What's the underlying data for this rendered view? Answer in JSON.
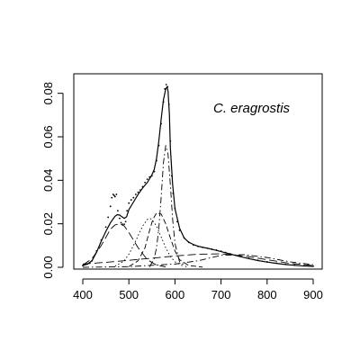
{
  "chart_data": {
    "type": "line",
    "title": "",
    "xlabel": "",
    "ylabel": "",
    "xlim": [
      400,
      900
    ],
    "ylim": [
      0,
      0.084
    ],
    "x_ticks": [
      400,
      500,
      600,
      700,
      800,
      900
    ],
    "x_tick_labels": [
      "400",
      "500",
      "600",
      "700",
      "800",
      "900"
    ],
    "y_ticks": [
      0.0,
      0.02,
      0.04,
      0.06,
      0.08
    ],
    "y_tick_labels": [
      "0.00",
      "0.02",
      "0.04",
      "0.06",
      "0.08"
    ],
    "grid": false,
    "annotation": "C. eragrostis",
    "series": [
      {
        "style": "solid",
        "x": [
          400,
          410,
          420,
          430,
          440,
          450,
          460,
          465,
          470,
          475,
          480,
          485,
          490,
          495,
          500,
          510,
          520,
          530,
          540,
          550,
          555,
          560,
          565,
          570,
          575,
          580,
          583,
          585,
          588,
          590,
          595,
          600,
          610,
          620,
          630,
          640,
          650,
          660,
          670,
          680,
          690,
          700,
          720,
          740,
          760,
          780,
          800,
          820,
          840,
          860,
          880,
          900
        ],
        "y": [
          0.0008,
          0.0015,
          0.003,
          0.007,
          0.012,
          0.0165,
          0.0205,
          0.022,
          0.0235,
          0.0242,
          0.024,
          0.0232,
          0.0225,
          0.0232,
          0.0265,
          0.03,
          0.0335,
          0.0365,
          0.039,
          0.0425,
          0.045,
          0.05,
          0.058,
          0.068,
          0.077,
          0.082,
          0.083,
          0.081,
          0.07,
          0.055,
          0.038,
          0.027,
          0.018,
          0.0135,
          0.0115,
          0.0105,
          0.0097,
          0.0092,
          0.0088,
          0.0083,
          0.0078,
          0.0072,
          0.0061,
          0.005,
          0.004,
          0.0031,
          0.0024,
          0.0018,
          0.0013,
          0.0009,
          0.0006,
          0.0004
        ]
      },
      {
        "style": "points",
        "x": [
          400,
          410,
          420,
          430,
          440,
          450,
          455,
          460,
          463,
          466,
          468,
          470,
          473,
          476,
          480,
          483,
          486,
          490,
          493,
          496,
          500,
          505,
          510,
          515,
          520,
          525,
          530,
          535,
          540,
          545,
          550,
          555,
          560,
          565,
          570,
          575,
          578,
          581,
          584,
          587,
          590,
          593,
          596,
          600,
          605,
          610,
          620,
          630,
          640,
          650,
          660,
          670,
          680,
          690,
          700,
          710,
          720,
          740,
          760,
          780,
          800,
          820,
          840,
          860,
          880,
          900
        ],
        "y": [
          0.0008,
          0.0015,
          0.003,
          0.0075,
          0.0125,
          0.0185,
          0.023,
          0.028,
          0.032,
          0.0335,
          0.033,
          0.0325,
          0.0335,
          0.026,
          0.0225,
          0.0205,
          0.0198,
          0.0198,
          0.021,
          0.026,
          0.0295,
          0.031,
          0.032,
          0.0335,
          0.0345,
          0.0355,
          0.037,
          0.039,
          0.0405,
          0.0415,
          0.042,
          0.044,
          0.049,
          0.056,
          0.066,
          0.076,
          0.082,
          0.084,
          0.083,
          0.075,
          0.058,
          0.042,
          0.034,
          0.027,
          0.021,
          0.017,
          0.0135,
          0.0115,
          0.0103,
          0.0096,
          0.0092,
          0.0088,
          0.0083,
          0.0079,
          0.0074,
          0.0068,
          0.0062,
          0.0051,
          0.0041,
          0.0032,
          0.0025,
          0.0019,
          0.0014,
          0.001,
          0.0007,
          0.0005
        ]
      },
      {
        "style": "long-dash",
        "x": [
          400,
          420,
          440,
          460,
          470,
          480,
          490,
          500,
          510,
          520,
          540,
          560,
          580
        ],
        "y": [
          0.001,
          0.004,
          0.01,
          0.0175,
          0.0195,
          0.02,
          0.019,
          0.016,
          0.0125,
          0.009,
          0.0035,
          0.001,
          0.0002
        ]
      },
      {
        "style": "dotted",
        "x": [
          470,
          490,
          500,
          510,
          520,
          530,
          540,
          545,
          550,
          560,
          570,
          580,
          590,
          600,
          620
        ],
        "y": [
          0.0005,
          0.003,
          0.006,
          0.01,
          0.0145,
          0.019,
          0.022,
          0.0225,
          0.022,
          0.019,
          0.014,
          0.009,
          0.005,
          0.0025,
          0.0003
        ]
      },
      {
        "style": "dash",
        "x": [
          500,
          520,
          535,
          545,
          552,
          560,
          570,
          580,
          590,
          600,
          610,
          630,
          660
        ],
        "y": [
          0.0003,
          0.003,
          0.009,
          0.017,
          0.022,
          0.025,
          0.0245,
          0.02,
          0.0135,
          0.0075,
          0.0035,
          0.0008,
          0.0001
        ]
      },
      {
        "style": "dash-dot",
        "x": [
          545,
          555,
          560,
          565,
          570,
          575,
          580,
          585,
          590,
          595,
          600,
          610,
          625
        ],
        "y": [
          0.0002,
          0.004,
          0.009,
          0.018,
          0.032,
          0.048,
          0.056,
          0.052,
          0.038,
          0.022,
          0.011,
          0.0025,
          0.0002
        ]
      },
      {
        "style": "long-dash",
        "x": [
          400,
          450,
          500,
          550,
          600,
          650,
          700,
          750,
          800,
          850,
          900
        ],
        "y": [
          0.0015,
          0.0023,
          0.0032,
          0.0042,
          0.0052,
          0.006,
          0.0062,
          0.0052,
          0.0035,
          0.0018,
          0.0008
        ]
      },
      {
        "style": "dash-dot",
        "x": [
          400,
          500,
          600,
          650,
          700,
          750,
          800,
          850,
          900
        ],
        "y": [
          0.0,
          0.0003,
          0.0015,
          0.003,
          0.0055,
          0.0058,
          0.0045,
          0.0025,
          0.0012
        ]
      }
    ]
  }
}
